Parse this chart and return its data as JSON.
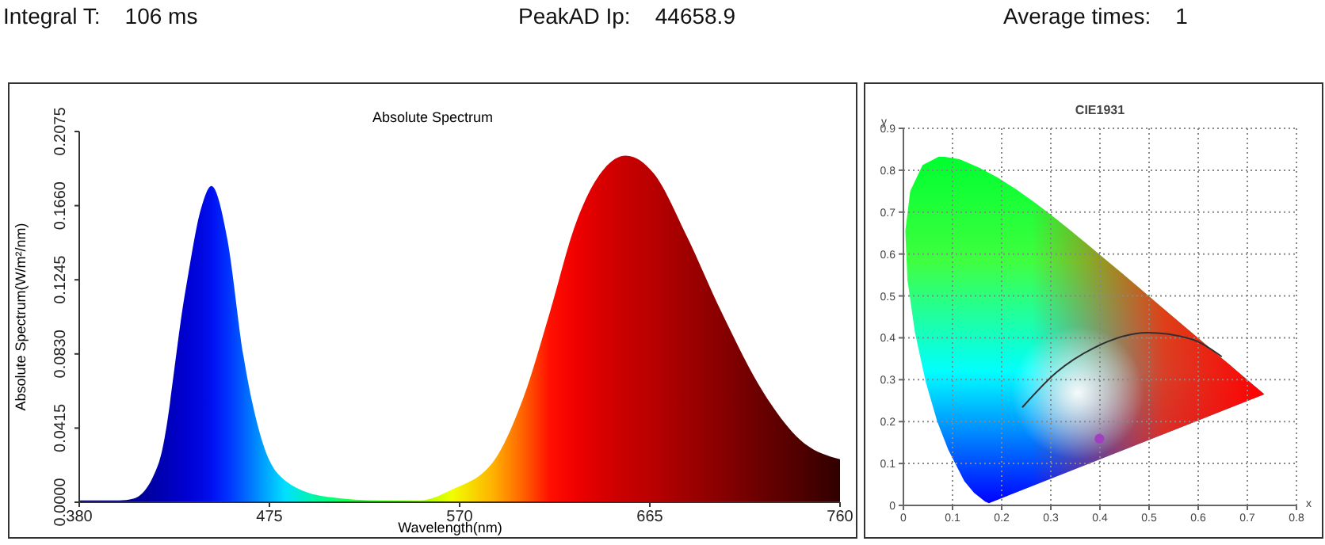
{
  "chart_data": [
    {
      "type": "area",
      "title": "Absolute Spectrum",
      "xlabel": "Wavelength(nm)",
      "ylabel": "Absolute Spectrum(W/m²/nm)",
      "annotations": [
        "Integral T:    106 ms",
        "PeakAD Ip:    44658.9",
        "Average times:    1"
      ],
      "x": [
        380,
        400,
        407,
        420,
        433,
        441,
        446,
        454,
        462,
        472,
        483,
        504,
        531,
        550,
        566,
        587,
        602,
        615,
        628,
        641,
        653,
        667,
        683,
        701,
        722,
        740,
        760
      ],
      "series": [
        {
          "values": [
            0.001,
            0.001,
            0.002,
            0.023,
            0.118,
            0.165,
            0.177,
            0.147,
            0.082,
            0.032,
            0.012,
            0.003,
            0.001,
            0.001,
            0.007,
            0.023,
            0.059,
            0.106,
            0.156,
            0.185,
            0.194,
            0.184,
            0.15,
            0.106,
            0.061,
            0.035,
            0.024
          ],
          "colors": [
            "#000060",
            "#000080",
            "#000090",
            "#0000b0",
            "#0000d0",
            "#0008e0",
            "#0010f0",
            "#0030ff",
            "#0060ff",
            "#00a0ff",
            "#00e0ff",
            "#00ff80",
            "#40ff00",
            "#a0ff00",
            "#f0ff00",
            "#ffb000",
            "#ff6000",
            "#ff1000",
            "#f00000",
            "#d80000",
            "#c80000",
            "#b80000",
            "#a00000",
            "#880000",
            "#680000",
            "#500000",
            "#300000"
          ]
        }
      ],
      "xlim": [
        380,
        760
      ],
      "xticks": [
        380,
        475,
        570,
        665,
        760
      ],
      "ylim": [
        0,
        0.2075
      ],
      "yticks": [
        {
          "value": 0,
          "label": "0.0000"
        },
        0.0415,
        {
          "value": 0.083,
          "label": "0.0830"
        },
        0.1245,
        {
          "value": 0.166,
          "label": "0.1660"
        },
        0.2075
      ],
      "grid": false,
      "legend": false
    },
    {
      "type": "line",
      "title": "CIE1931",
      "xlabel": "x",
      "ylabel": "y",
      "series": [
        {
          "type": "line",
          "color": "#303030",
          "x": [
            0.242,
            0.312,
            0.388,
            0.496,
            0.583,
            0.648
          ],
          "values": [
            0.234,
            0.318,
            0.376,
            0.412,
            0.398,
            0.355
          ]
        },
        {
          "type": "scatter",
          "color": "#a040c0",
          "x": [
            0.399
          ],
          "values": [
            0.159
          ],
          "marker": "circle"
        }
      ],
      "xlim": [
        0,
        0.8
      ],
      "xticks": [
        0,
        0.1,
        0.2,
        0.3,
        0.4,
        0.5,
        0.6,
        0.7,
        0.8
      ],
      "ylim": [
        0,
        0.9
      ],
      "yticks": [
        0,
        0.1,
        0.2,
        0.3,
        0.4,
        0.5,
        0.6,
        0.7,
        0.8,
        0.9
      ],
      "grid": true,
      "legend": false
    }
  ]
}
